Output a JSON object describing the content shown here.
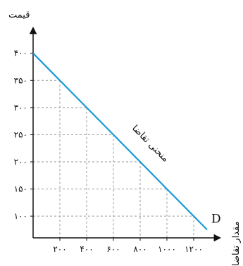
{
  "chart_data": {
    "type": "line",
    "ylabel": "قیمت",
    "xlabel": "مقدار تقاضا",
    "curve_label": "منحنی تقاضا",
    "series": [
      {
        "name": "D",
        "color": "#1a9ad6",
        "x": [
          0,
          200,
          400,
          600,
          800,
          1000,
          1200,
          1300
        ],
        "y": [
          400,
          350,
          300,
          250,
          200,
          150,
          100,
          75
        ]
      }
    ],
    "x_ticks": [
      200,
      400,
      600,
      800,
      1000,
      1200
    ],
    "x_tick_labels": [
      "۲۰۰",
      "۴۰۰",
      "۶۰۰",
      "۸۰۰",
      "۱۰۰۰",
      "۱۲۰۰"
    ],
    "y_ticks": [
      100,
      150,
      200,
      250,
      300,
      350,
      400
    ],
    "y_tick_labels": [
      "۱۰۰",
      "۱۵۰",
      "۲۰۰",
      "۲۵۰",
      "۳۰۰",
      "۳۵۰",
      "۴۰۰"
    ],
    "grid": true,
    "grid_style": "dashed-guides"
  }
}
